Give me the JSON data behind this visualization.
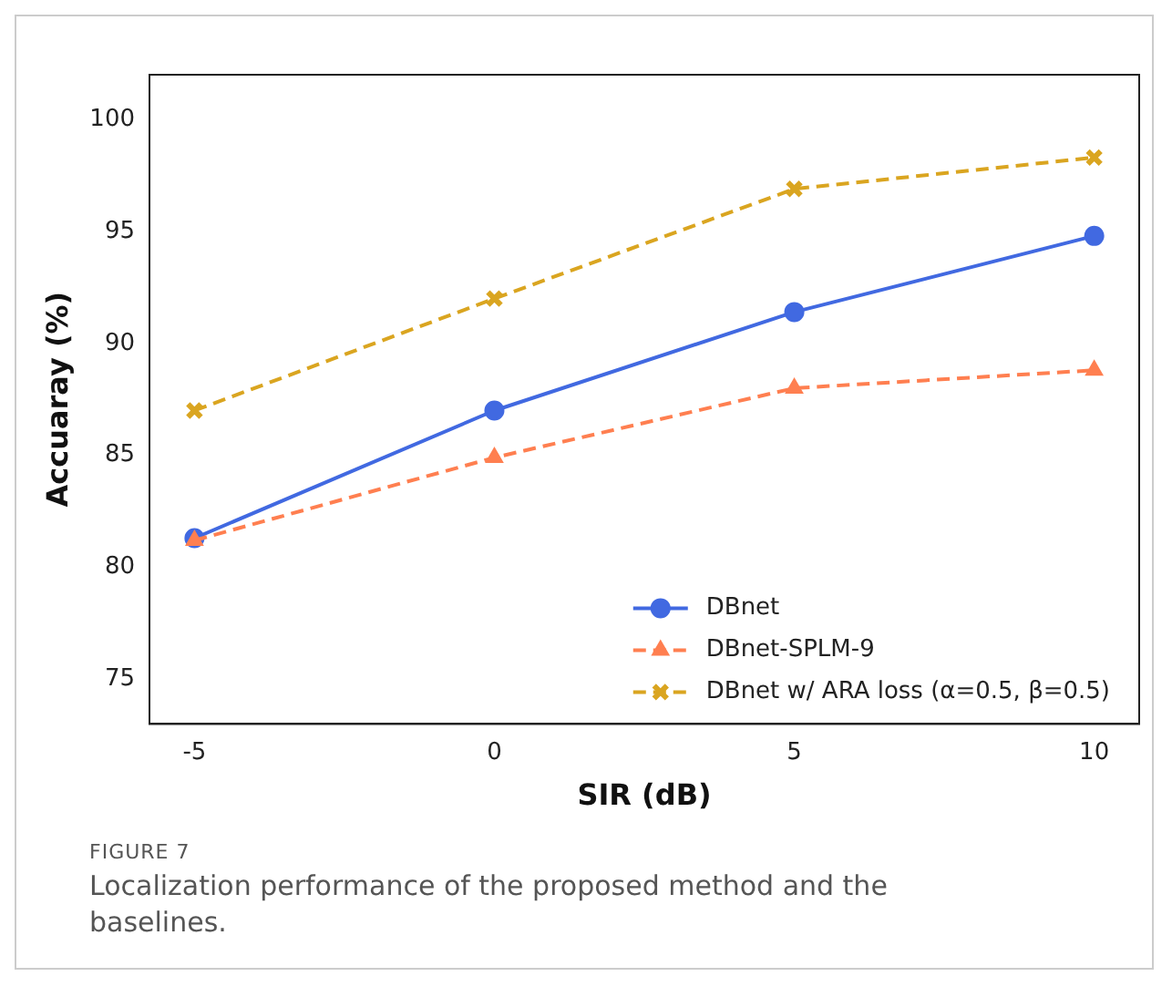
{
  "chart_data": {
    "type": "line",
    "xlabel": "SIR (dB)",
    "ylabel": "Accuaray (%)",
    "x": [
      -5,
      0,
      5,
      10
    ],
    "series": [
      {
        "name": "DBnet",
        "color": "#4169e1",
        "values": [
          81.3,
          87.0,
          91.4,
          94.8
        ],
        "marker": "circle",
        "line_style": "solid"
      },
      {
        "name": "DBnet-SPLM-9",
        "color": "#ff7f50",
        "values": [
          81.2,
          84.9,
          88.0,
          88.8
        ],
        "marker": "triangle",
        "line_style": "dashed"
      },
      {
        "name": "DBnet w/ ARA loss (α=0.5, β=0.5)",
        "color": "#daa520",
        "values": [
          87.0,
          92.0,
          96.9,
          98.3
        ],
        "marker": "cross",
        "line_style": "dashed"
      }
    ],
    "xlim": [
      -5.75,
      10.75
    ],
    "xticks": [
      -5,
      0,
      5,
      10
    ],
    "ylim": [
      73,
      102
    ],
    "yticks": [
      75,
      80,
      85,
      90,
      95,
      100
    ],
    "grid": false,
    "legend": "bottom right",
    "annotations": [
      "FIGURE 7",
      "Localization performance of the proposed method and the baselines."
    ]
  }
}
